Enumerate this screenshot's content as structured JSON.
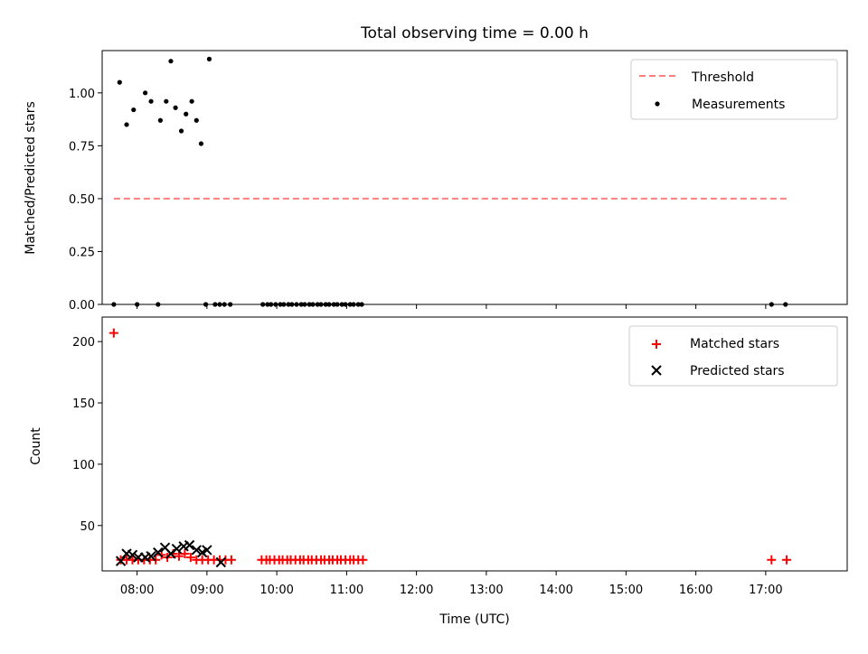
{
  "chart_data": [
    {
      "type": "scatter",
      "title": "Total observing time = 0.00 h",
      "xlabel": "",
      "ylabel": "Matched/Predicted stars",
      "ylim": [
        0.0,
        1.2
      ],
      "xlim": [
        "07:30",
        "18:10"
      ],
      "yticks": [
        "0.00",
        "0.25",
        "0.50",
        "0.75",
        "1.00"
      ],
      "legend": {
        "location": "upper right",
        "entries": [
          "Threshold",
          "Measurements"
        ]
      },
      "threshold": {
        "name": "Threshold",
        "value": 0.5,
        "x_start": "07:40",
        "x_end": "17:20",
        "color": "#ff7f7f"
      },
      "series": [
        {
          "name": "Measurements",
          "color": "#000000",
          "x": [
            "07:40",
            "07:45",
            "07:51",
            "07:57",
            "08:00",
            "08:07",
            "08:12",
            "08:18",
            "08:20",
            "08:25",
            "08:29",
            "08:33",
            "08:38",
            "08:42",
            "08:47",
            "08:51",
            "08:55",
            "08:59",
            "09:02",
            "09:07",
            "09:11",
            "09:15",
            "09:20",
            "09:48",
            "09:52",
            "09:55",
            "09:59",
            "10:03",
            "10:06",
            "10:10",
            "10:13",
            "10:17",
            "10:21",
            "10:24",
            "10:28",
            "10:31",
            "10:35",
            "10:38",
            "10:42",
            "10:45",
            "10:49",
            "10:52",
            "10:56",
            "10:59",
            "11:03",
            "11:06",
            "11:10",
            "11:13",
            "17:05",
            "17:17"
          ],
          "y": [
            0.0,
            1.05,
            0.85,
            0.92,
            0.0,
            1.0,
            0.96,
            0.0,
            0.87,
            0.96,
            1.15,
            0.93,
            0.82,
            0.9,
            0.96,
            0.87,
            0.76,
            0.0,
            1.16,
            0.0,
            0.0,
            0.0,
            0.0,
            0.0,
            0.0,
            0.0,
            0.0,
            0.0,
            0.0,
            0.0,
            0.0,
            0.0,
            0.0,
            0.0,
            0.0,
            0.0,
            0.0,
            0.0,
            0.0,
            0.0,
            0.0,
            0.0,
            0.0,
            0.0,
            0.0,
            0.0,
            0.0,
            0.0,
            0.0,
            0.0
          ]
        }
      ]
    },
    {
      "type": "scatter",
      "title": "",
      "xlabel": "Time (UTC)",
      "ylabel": "Count",
      "ylim": [
        13,
        220
      ],
      "xlim": [
        "07:30",
        "18:10"
      ],
      "yticks": [
        "50",
        "100",
        "150",
        "200"
      ],
      "xticks": [
        "08:00",
        "09:00",
        "10:00",
        "11:00",
        "12:00",
        "13:00",
        "14:00",
        "15:00",
        "16:00",
        "17:00"
      ],
      "legend": {
        "location": "upper right",
        "entries": [
          "Matched stars",
          "Predicted stars"
        ]
      },
      "series": [
        {
          "name": "Matched stars",
          "color": "#ff0000",
          "x": [
            "07:40",
            "07:46",
            "07:51",
            "07:56",
            "08:01",
            "08:06",
            "08:11",
            "08:16",
            "08:21",
            "08:26",
            "08:31",
            "08:36",
            "08:41",
            "08:46",
            "08:51",
            "08:56",
            "09:01",
            "09:06",
            "09:11",
            "09:16",
            "09:21",
            "09:47",
            "09:51",
            "09:54",
            "09:58",
            "10:02",
            "10:05",
            "10:09",
            "10:12",
            "10:16",
            "10:20",
            "10:23",
            "10:27",
            "10:30",
            "10:34",
            "10:38",
            "10:41",
            "10:45",
            "10:48",
            "10:52",
            "10:55",
            "10:59",
            "11:03",
            "11:06",
            "11:10",
            "11:14",
            "17:05",
            "17:18"
          ],
          "y": [
            207,
            22,
            22,
            22,
            22,
            22,
            22,
            22,
            26,
            24,
            27,
            25,
            27,
            24,
            22,
            22,
            22,
            22,
            22,
            22,
            22,
            22,
            22,
            22,
            22,
            22,
            22,
            22,
            22,
            22,
            22,
            22,
            22,
            22,
            22,
            22,
            22,
            22,
            22,
            22,
            22,
            22,
            22,
            22,
            22,
            22,
            22,
            22
          ]
        },
        {
          "name": "Predicted stars",
          "color": "#000000",
          "x": [
            "07:46",
            "07:51",
            "07:56",
            "08:01",
            "08:07",
            "08:12",
            "08:18",
            "08:24",
            "08:29",
            "08:34",
            "08:40",
            "08:45",
            "08:51",
            "08:56",
            "09:00",
            "09:12"
          ],
          "y": [
            21,
            27,
            26,
            24,
            24,
            25,
            28,
            32,
            27,
            31,
            33,
            34,
            30,
            28,
            30,
            20
          ]
        }
      ]
    }
  ]
}
